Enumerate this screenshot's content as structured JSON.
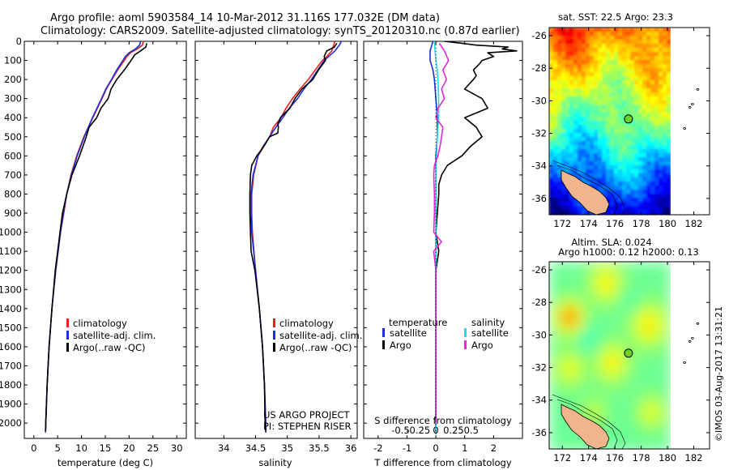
{
  "titles": {
    "line1": "Argo profile: aoml 5903584_14 10-Mar-2012 31.116S 177.032E (DM data)",
    "line2": "Climatology: CARS2009. Satellite-adjusted climatology: synTS_20120310.nc (0.87d earlier)"
  },
  "chart_data": [
    {
      "type": "line",
      "panel": "temperature",
      "xlabel": "temperature (deg C)",
      "xlim": [
        -2,
        32
      ],
      "ylim": [
        2080,
        0
      ],
      "xticks": [
        "0",
        "5",
        "10",
        "15",
        "20",
        "25",
        "30"
      ],
      "xtick_values": [
        0,
        5,
        10,
        15,
        20,
        25,
        30
      ],
      "yticks": [
        "0",
        "100",
        "200",
        "300",
        "400",
        "500",
        "600",
        "700",
        "800",
        "900",
        "1000",
        "1100",
        "1200",
        "1300",
        "1400",
        "1500",
        "1600",
        "1700",
        "1800",
        "1900",
        "2000"
      ],
      "ytick_values": [
        0,
        100,
        200,
        300,
        400,
        500,
        600,
        700,
        800,
        900,
        1000,
        1100,
        1200,
        1300,
        1400,
        1500,
        1600,
        1700,
        1800,
        1900,
        2000
      ],
      "legend": [
        "climatology",
        "satellite-adj. clim.",
        "Argo(..raw -QC)"
      ],
      "series": [
        {
          "name": "climatology",
          "color": "#e8221a",
          "depth": [
            0,
            20,
            40,
            60,
            80,
            100,
            150,
            200,
            250,
            300,
            400,
            500,
            600,
            700,
            800,
            900,
            1000,
            1200,
            1400,
            1600,
            1800,
            2000,
            2050
          ],
          "values": [
            23.0,
            22.8,
            21.7,
            20.3,
            19.5,
            19.0,
            17.6,
            16.4,
            15.2,
            14.3,
            12.4,
            10.5,
            9.0,
            7.8,
            6.9,
            6.3,
            5.6,
            4.6,
            3.8,
            3.2,
            2.8,
            2.5,
            2.45
          ]
        },
        {
          "name": "satellite-adj. clim.",
          "color": "#1c2fd6",
          "depth": [
            0,
            20,
            40,
            60,
            80,
            100,
            150,
            200,
            250,
            300,
            400,
            500,
            600,
            700,
            800,
            900,
            1000,
            1200,
            1400,
            1600,
            1800,
            2000,
            2050
          ],
          "values": [
            22.4,
            22.2,
            21.3,
            20.0,
            19.2,
            18.7,
            17.4,
            16.3,
            15.1,
            14.2,
            12.3,
            10.6,
            9.1,
            7.9,
            6.9,
            6.2,
            5.6,
            4.6,
            3.8,
            3.2,
            2.8,
            2.5,
            2.45
          ]
        },
        {
          "name": "Argo(..raw -QC)",
          "color": "#000000",
          "depth": [
            10,
            30,
            50,
            70,
            100,
            150,
            200,
            250,
            300,
            350,
            400,
            450,
            500,
            600,
            700,
            800,
            900,
            1000,
            1100,
            1200,
            1400,
            1600,
            1800,
            2000,
            2040
          ],
          "values": [
            23.7,
            23.5,
            22.4,
            21.2,
            20.4,
            19.0,
            17.4,
            16.2,
            15.6,
            14.1,
            13.2,
            11.6,
            11.0,
            9.6,
            8.0,
            6.9,
            6.0,
            5.5,
            5.0,
            4.5,
            3.8,
            3.2,
            2.8,
            2.5,
            2.45
          ]
        }
      ]
    },
    {
      "type": "line",
      "panel": "salinity",
      "xlabel": "salinity",
      "xlim": [
        33.55,
        36.1
      ],
      "ylim": [
        2080,
        0
      ],
      "xticks": [
        "34",
        "34.5",
        "35",
        "35.5",
        "36"
      ],
      "xtick_values": [
        34,
        34.5,
        35,
        35.5,
        36
      ],
      "legend": [
        "climatology",
        "satellite-adj. clim.",
        "Argo(..raw -QC)"
      ],
      "series": [
        {
          "name": "climatology",
          "color": "#e8221a",
          "depth": [
            0,
            20,
            50,
            80,
            100,
            150,
            200,
            250,
            300,
            350,
            400,
            450,
            500,
            550,
            600,
            700,
            800,
            900,
            1000,
            1200,
            1400,
            1600,
            1800,
            2000,
            2050
          ],
          "values": [
            35.75,
            35.73,
            35.7,
            35.62,
            35.55,
            35.44,
            35.33,
            35.2,
            35.08,
            34.98,
            34.9,
            34.78,
            34.72,
            34.63,
            34.54,
            34.47,
            34.44,
            34.44,
            34.45,
            34.5,
            34.56,
            34.61,
            34.64,
            34.66,
            34.66
          ]
        },
        {
          "name": "satellite-adj. clim.",
          "color": "#1c2fd6",
          "depth": [
            0,
            20,
            50,
            80,
            100,
            150,
            200,
            250,
            300,
            350,
            400,
            450,
            500,
            550,
            600,
            700,
            800,
            900,
            1000,
            1200,
            1400,
            1600,
            1800,
            2000,
            2050
          ],
          "values": [
            35.85,
            35.82,
            35.75,
            35.65,
            35.58,
            35.48,
            35.38,
            35.26,
            35.16,
            35.03,
            34.93,
            34.82,
            34.72,
            34.62,
            34.54,
            34.46,
            34.43,
            34.43,
            34.44,
            34.5,
            34.56,
            34.61,
            34.64,
            34.66,
            34.66
          ]
        },
        {
          "name": "Argo(..raw -QC)",
          "color": "#000000",
          "depth": [
            10,
            30,
            50,
            80,
            100,
            150,
            200,
            250,
            300,
            350,
            400,
            420,
            430,
            450,
            480,
            500,
            550,
            600,
            650,
            700,
            800,
            900,
            1000,
            1100,
            1200,
            1400,
            1600,
            1800,
            2000,
            2040
          ],
          "values": [
            35.78,
            35.74,
            35.62,
            35.58,
            35.6,
            35.49,
            35.4,
            35.23,
            35.12,
            35.04,
            34.89,
            34.87,
            34.85,
            34.86,
            34.85,
            34.72,
            34.63,
            34.52,
            34.44,
            34.42,
            34.41,
            34.41,
            34.42,
            34.43,
            34.49,
            34.56,
            34.61,
            34.64,
            34.65,
            34.66
          ]
        }
      ],
      "annotation": [
        "US ARGO PROJECT",
        "PI: STEPHEN RISER"
      ]
    },
    {
      "type": "line",
      "panel": "difference",
      "xlabel": "T difference from climatology",
      "x2label": "S difference from climatology",
      "xlim": [
        -2.5,
        3.0
      ],
      "ylim": [
        2080,
        0
      ],
      "xticks": [
        "-2",
        "-1",
        "0",
        "1",
        "2"
      ],
      "xtick_values": [
        -2,
        -1,
        0,
        1,
        2
      ],
      "x2ticks": [
        "-0.5",
        "-0.25",
        "0",
        "0.25",
        "0.5"
      ],
      "x2tick_values": [
        -0.5,
        -0.25,
        0,
        0.25,
        0.5
      ],
      "legend_left_title": "temperature",
      "legend_right_title": "salinity",
      "legend": [
        "satellite",
        "Argo",
        "satellite",
        "Argo"
      ],
      "series": [
        {
          "name": "temperature satellite",
          "color": "#1c2fd6",
          "depth": [
            0,
            50,
            100,
            150,
            200,
            300,
            400,
            500,
            600,
            700,
            800,
            1000,
            1200,
            1400,
            1600,
            1800,
            2000,
            2050
          ],
          "values": [
            -0.1,
            -0.2,
            -0.2,
            -0.1,
            -0.05,
            0,
            0.05,
            0.05,
            0,
            0,
            0,
            0,
            0,
            0,
            0,
            0,
            0,
            0
          ]
        },
        {
          "name": "temperature Argo",
          "color": "#000000",
          "depth": [
            0,
            10,
            20,
            30,
            40,
            50,
            60,
            80,
            100,
            120,
            150,
            180,
            200,
            250,
            300,
            350,
            400,
            450,
            500,
            550,
            600,
            650,
            700,
            750,
            800,
            900,
            1000,
            1100,
            1200,
            1300,
            1400,
            1600,
            1800,
            2000,
            2050
          ],
          "values": [
            0.3,
            0.9,
            1.4,
            2.5,
            2.3,
            2.8,
            1.8,
            2.0,
            1.6,
            1.5,
            1.3,
            1.4,
            1.3,
            1.0,
            1.6,
            1.8,
            1.0,
            1.4,
            1.6,
            1.2,
            0.9,
            0.4,
            0.2,
            0.1,
            0.1,
            0.05,
            0.0,
            0.1,
            0.0,
            0.0,
            0.0,
            0.0,
            0.0,
            0.0,
            0.0
          ]
        },
        {
          "name": "salinity satellite",
          "color": "#22d9e6",
          "depth": [
            0,
            50,
            100,
            150,
            200,
            300,
            400,
            500,
            600,
            700,
            800,
            1000,
            1200,
            1400,
            1600,
            1800,
            2000,
            2050
          ],
          "values": [
            -0.02,
            -0.01,
            0.0,
            0.02,
            0.03,
            0.04,
            0.04,
            0.02,
            0.01,
            0.0,
            0.0,
            0.0,
            0.0,
            0.0,
            0.0,
            0.0,
            0.0,
            0.0
          ]
        },
        {
          "name": "salinity Argo",
          "color": "#e228d8",
          "depth": [
            10,
            50,
            100,
            150,
            200,
            250,
            300,
            350,
            400,
            450,
            500,
            550,
            600,
            650,
            700,
            800,
            900,
            1000,
            1050,
            1100,
            1200,
            1300,
            1400,
            1600,
            1800,
            2000
          ],
          "values": [
            0.05,
            0.12,
            0.18,
            0.1,
            0.15,
            0.08,
            0.12,
            0.03,
            0.0,
            0.1,
            0.08,
            0.06,
            0.03,
            -0.02,
            -0.03,
            -0.02,
            -0.02,
            -0.03,
            0.08,
            -0.03,
            0.0,
            0.0,
            0.0,
            0.0,
            0.0,
            0.0
          ]
        }
      ]
    },
    {
      "type": "heatmap",
      "panel": "map-sst",
      "title": "sat. SST: 22.5  Argo: 23.3",
      "xticks": [
        "172",
        "174",
        "176",
        "178",
        "180",
        "182"
      ],
      "xtick_values": [
        172,
        174,
        176,
        178,
        180,
        182
      ],
      "yticks": [
        "-26",
        "-28",
        "-30",
        "-32",
        "-34",
        "-36"
      ],
      "ytick_values": [
        -26,
        -28,
        -30,
        -32,
        -34,
        -36
      ],
      "xlim": [
        171.0,
        183.2
      ],
      "ylim": [
        -37.0,
        -25.5
      ],
      "argo_position": [
        177.032,
        -31.116
      ]
    },
    {
      "type": "heatmap",
      "panel": "map-sla",
      "title_line1": "Altim. SLA: 0.024",
      "title_line2": "Argo h1000: 0.12 h2000: 0.13",
      "xticks": [
        "172",
        "174",
        "176",
        "178",
        "180",
        "182"
      ],
      "xtick_values": [
        172,
        174,
        176,
        178,
        180,
        182
      ],
      "yticks": [
        "-26",
        "-28",
        "-30",
        "-32",
        "-34",
        "-36"
      ],
      "ytick_values": [
        -26,
        -28,
        -30,
        -32,
        -34,
        -36
      ],
      "xlim": [
        171.0,
        183.2
      ],
      "ylim": [
        -37.0,
        -25.5
      ],
      "argo_position": [
        177.032,
        -31.116
      ]
    }
  ],
  "watermark": "©IMOS 03-Aug-2017 13:31:21",
  "colors": {
    "clim": "#e8221a",
    "sat": "#1c2fd6",
    "argo": "#000000",
    "sal_sat": "#22d9e6",
    "sal_argo": "#e228d8",
    "argo_marker": "#6ad326"
  }
}
